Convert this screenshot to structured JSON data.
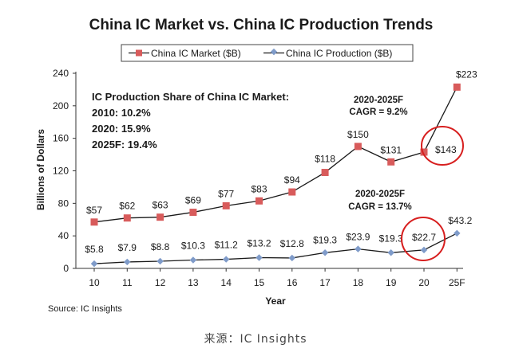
{
  "colors": {
    "market": "#d85b5b",
    "market_line": "#1a1a1a",
    "production": "#7f9bc9",
    "production_line": "#1a1a1a",
    "highlight_circle": "#d71f1f"
  },
  "chart_data": {
    "type": "line",
    "title": "China IC Market vs. China IC Production Trends",
    "xlabel": "Year",
    "ylabel": "Billions of Dollars",
    "categories": [
      "10",
      "11",
      "12",
      "13",
      "14",
      "15",
      "16",
      "17",
      "18",
      "19",
      "20",
      "25F"
    ],
    "ylim": [
      0,
      240
    ],
    "yticks": [
      0,
      40,
      80,
      120,
      160,
      200,
      240
    ],
    "grid": false,
    "legend_position": "top",
    "series": [
      {
        "name": "China IC Market ($B)",
        "marker": "square",
        "values": [
          57,
          62,
          63,
          69,
          77,
          83,
          94,
          118,
          150,
          131,
          143,
          223
        ],
        "labels": [
          "$57",
          "$62",
          "$63",
          "$69",
          "$77",
          "$83",
          "$94",
          "$118",
          "$150",
          "$131",
          "$143",
          "$223"
        ]
      },
      {
        "name": "China IC Production ($B)",
        "marker": "diamond",
        "values": [
          5.8,
          7.9,
          8.8,
          10.3,
          11.2,
          13.2,
          12.8,
          19.3,
          23.9,
          19.3,
          22.7,
          43.2
        ],
        "labels": [
          "$5.8",
          "$7.9",
          "$8.8",
          "$10.3",
          "$11.2",
          "$13.2",
          "$12.8",
          "$19.3",
          "$23.9",
          "$19.3",
          "$22.7",
          "$43.2"
        ]
      }
    ],
    "annotations": {
      "share_box": [
        "IC Production Share of China IC Market:",
        "2010: 10.2%",
        "2020: 15.9%",
        "2025F: 19.4%"
      ],
      "market_cagr": [
        "2020-2025F",
        "CAGR = 9.2%"
      ],
      "production_cagr": [
        "2020-2025F",
        "CAGR = 13.7%"
      ]
    },
    "source": "Source: IC Insights"
  },
  "caption": "来源：IC Insights"
}
